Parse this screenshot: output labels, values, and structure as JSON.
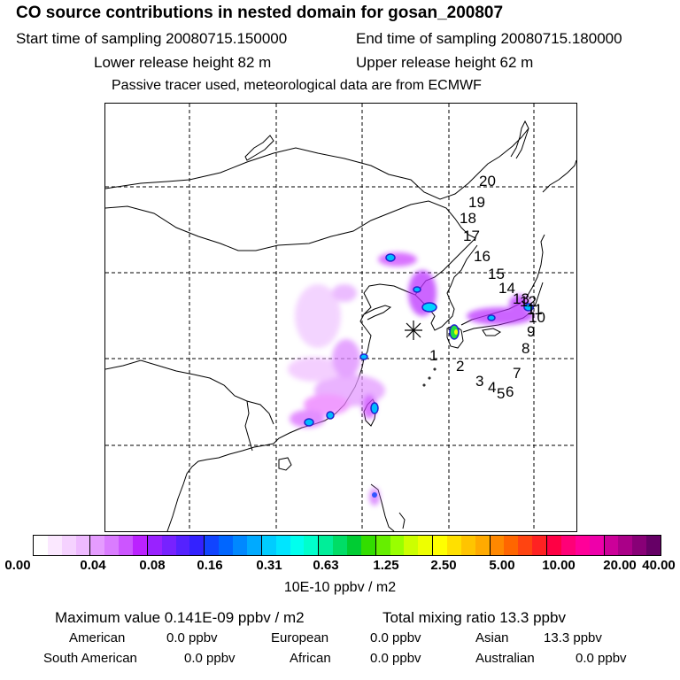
{
  "header": {
    "title": "CO  source contributions in nested domain for gosan_200807",
    "start_time": "Start time of sampling 20080715.150000",
    "end_time": "End time of sampling 20080715.180000",
    "lower_height": "Lower release height   82 m",
    "upper_height": "Upper release height   62 m",
    "tracer_note": "Passive tracer used, meteorological data are from ECMWF"
  },
  "map": {
    "trajectory_labels": [
      "1",
      "2",
      "3",
      "4",
      "5",
      "6",
      "7",
      "8",
      "9",
      "10",
      "11",
      "12",
      "13",
      "14",
      "15",
      "16",
      "17",
      "18",
      "19",
      "20"
    ],
    "receptor_marker": "receptor-asterisk"
  },
  "colorbar": {
    "ticks": [
      "0.00",
      "0.04",
      "0.08",
      "0.16",
      "0.31",
      "0.63",
      "1.25",
      "2.50",
      "5.00",
      "10.00",
      "20.00",
      "40.00"
    ],
    "units": "10E-10 ppbv / m2",
    "colors": [
      [
        "#ffffff",
        "#fbe8ff",
        "#f5d2ff",
        "#eebaff"
      ],
      [
        "#e59cff",
        "#da7cff",
        "#cc55ff",
        "#bb22ff"
      ],
      [
        "#9922ff",
        "#7722ff",
        "#5522ff",
        "#3322ff"
      ],
      [
        "#1144ff",
        "#0066ff",
        "#0088ff",
        "#00aaff"
      ],
      [
        "#00ccff",
        "#00e5ff",
        "#00ffee",
        "#00ffcc"
      ],
      [
        "#00ee99",
        "#00dd66",
        "#00cc33",
        "#33dd00"
      ],
      [
        "#66ee00",
        "#99ff00",
        "#ccff00",
        "#eeff00"
      ],
      [
        "#ffff00",
        "#ffe000",
        "#ffc400",
        "#ffaa00"
      ],
      [
        "#ff8800",
        "#ff6600",
        "#ff4411",
        "#ff2222"
      ],
      [
        "#ff0044",
        "#ff0077",
        "#ff0099",
        "#ee00aa"
      ],
      [
        "#cc0099",
        "#aa0088",
        "#880077",
        "#660066"
      ]
    ]
  },
  "stats": {
    "max_value": "Maximum value  0.141E-09 ppbv / m2",
    "total_mixing": "Total mixing ratio       13.3 ppbv",
    "american_label": "American",
    "american_value": "0.0 ppbv",
    "european_label": "European",
    "european_value": "0.0 ppbv",
    "asian_label": "Asian",
    "asian_value": "13.3 ppbv",
    "south_american_label": "South American",
    "south_american_value": "0.0 ppbv",
    "african_label": "African",
    "african_value": "0.0 ppbv",
    "australian_label": "Australian",
    "australian_value": "0.0 ppbv"
  }
}
